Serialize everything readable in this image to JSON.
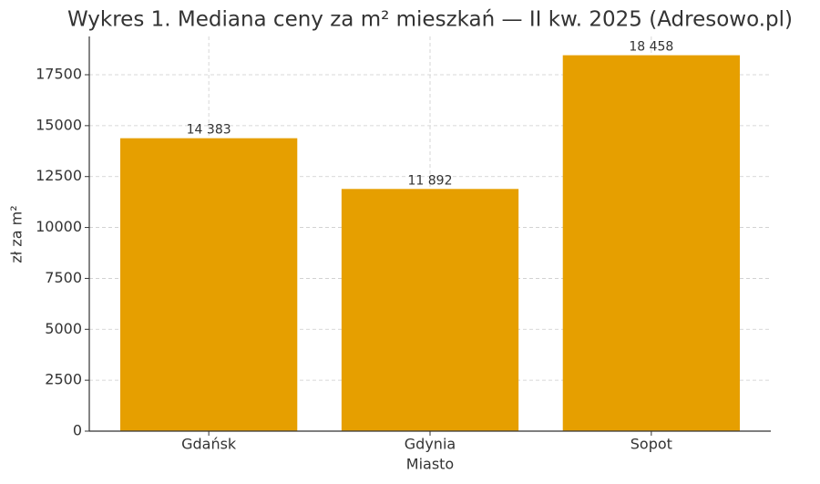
{
  "chart_data": {
    "type": "bar",
    "title": "Wykres 1. Mediana ceny za m² mieszkań — II kw. 2025 (Adresowo.pl)",
    "x_label": "Miasto",
    "y_label": "zł za m²",
    "categories": [
      "Gdańsk",
      "Gdynia",
      "Sopot"
    ],
    "values": [
      14383,
      11892,
      18458
    ],
    "value_labels": [
      "14 383",
      "11 892",
      "18 458"
    ],
    "color": "#E69F00",
    "ylim": [
      0,
      19380
    ],
    "yticks": [
      0,
      2500,
      5000,
      7500,
      10000,
      12500,
      15000,
      17500
    ],
    "grid": true
  }
}
